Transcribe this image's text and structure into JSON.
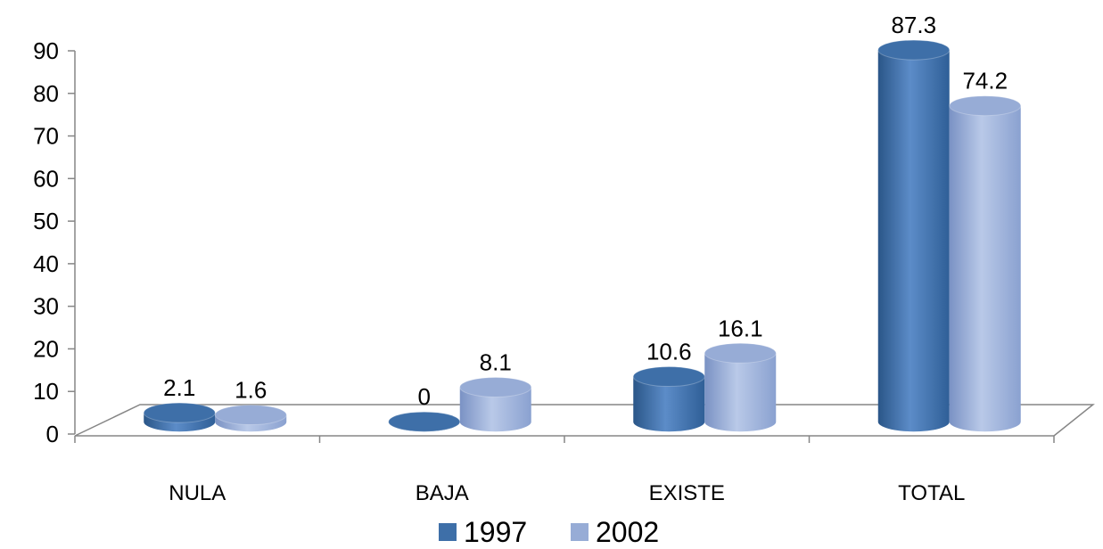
{
  "chart_data": {
    "type": "bar",
    "categories": [
      "NULA",
      "BAJA",
      "EXISTE",
      "TOTAL"
    ],
    "series": [
      {
        "name": "1997",
        "values": [
          2.1,
          0,
          10.6,
          87.3
        ],
        "color": "#3e6fa8"
      },
      {
        "name": "2002",
        "values": [
          1.6,
          8.1,
          16.1,
          74.2
        ],
        "color": "#97acd6"
      }
    ],
    "data_labels": [
      [
        "2.1",
        "0",
        "10.6",
        "87.3"
      ],
      [
        "1.6",
        "8.1",
        "16.1",
        "74.2"
      ]
    ],
    "ylim": [
      0,
      90
    ],
    "yticks": [
      0,
      10,
      20,
      30,
      40,
      50,
      60,
      70,
      80,
      90
    ],
    "ytick_labels": [
      "0",
      "10",
      "20",
      "30",
      "40",
      "50",
      "60",
      "70",
      "80",
      "90"
    ],
    "title": "",
    "xlabel": "",
    "ylabel": "",
    "grid": false,
    "legend": "bottom",
    "style": "3d-cylinder"
  }
}
